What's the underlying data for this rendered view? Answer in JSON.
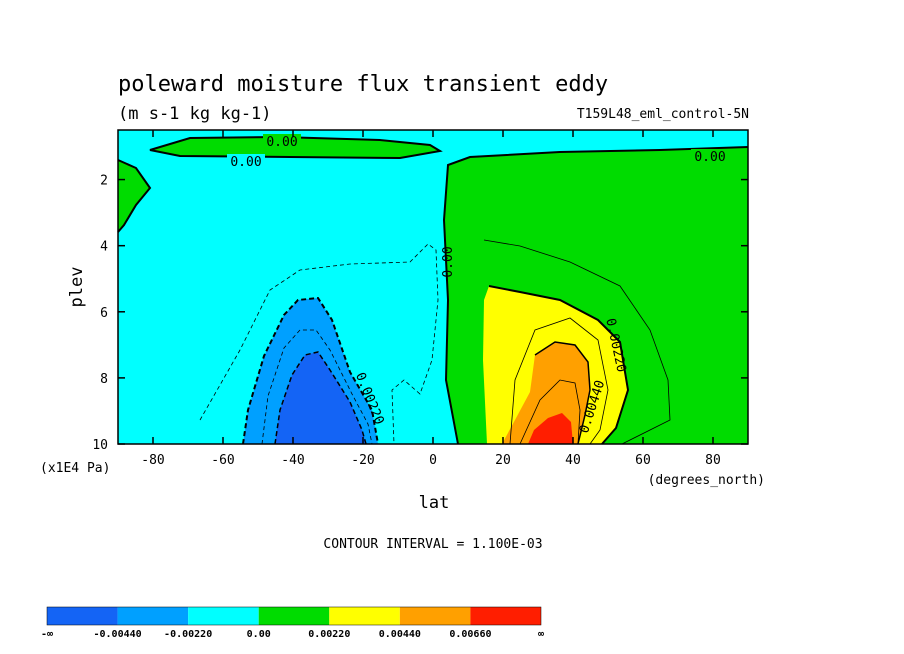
{
  "chart_data": {
    "type": "heatmap",
    "title": "poleward moisture flux transient eddy",
    "units": "(m s-1 kg kg-1)",
    "dataset": "T159L48_eml_control-5N",
    "xlabel": "lat",
    "x_units": "(degrees_north)",
    "ylabel": "plev",
    "y_units": "(x1E4 Pa)",
    "xlim": [
      -90,
      90
    ],
    "ylim": [
      10,
      0.5
    ],
    "y_inverted": true,
    "x_ticks": [
      -80,
      -60,
      -40,
      -20,
      0,
      20,
      40,
      60,
      80
    ],
    "x_tick_labels": [
      "-80",
      "-60",
      "-40",
      "-20",
      "0",
      "20",
      "40",
      "60",
      "80"
    ],
    "y_ticks": [
      2,
      4,
      6,
      8,
      10
    ],
    "y_tick_labels": [
      "2",
      "4",
      "6",
      "8",
      "10"
    ],
    "contour_interval_label": "CONTOUR INTERVAL = 1.100E-03",
    "contour_labels": [
      "0.00",
      "0.00",
      "0.00",
      "0.00",
      "0.00220",
      "0.00220",
      "0.00440"
    ],
    "colorbar": {
      "levels": [
        -0.0044,
        -0.0022,
        0.0,
        0.0022,
        0.0044,
        0.0066
      ],
      "tick_labels": [
        "-∞",
        "-0.00440",
        "-0.00220",
        "0.00",
        "0.00220",
        "0.00440",
        "0.00660",
        "∞"
      ],
      "colors": [
        "#1464f5",
        "#00a0ff",
        "#00ffff",
        "#00dc00",
        "#ffff00",
        "#ffa000",
        "#ff1e00"
      ]
    }
  }
}
